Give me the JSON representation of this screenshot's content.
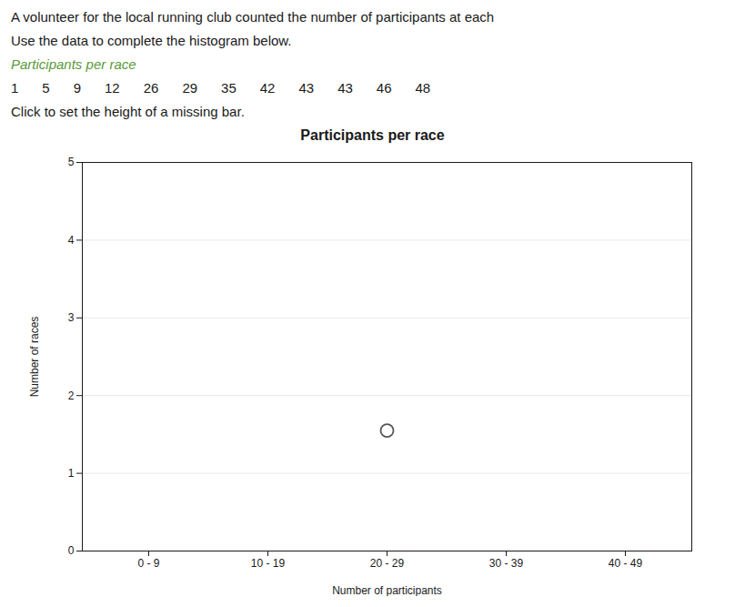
{
  "chart_data": {
    "type": "bar",
    "title": "Participants per race",
    "annotations": [
      {
        "text": "A volunteer for the local running club counted the number of participants at each"
      },
      {
        "text": "Use the data to complete the histogram below."
      },
      {
        "text": "Participants per race",
        "color": "#5a9a3a"
      },
      {
        "values": [
          1,
          5,
          9,
          12,
          26,
          29,
          35,
          42,
          43,
          43,
          46,
          48
        ]
      },
      {
        "text": "Click to set the height of a missing bar."
      }
    ],
    "xlabel": "Number of participants",
    "ylabel": "Number of races",
    "categories": [
      "0 - 9",
      "10 - 19",
      "20 - 29",
      "30 - 39",
      "40 - 49"
    ],
    "series": [
      {
        "type": "bar",
        "values": [
          null,
          null,
          null,
          null,
          null
        ]
      },
      {
        "type": "scatter",
        "marker": "circle",
        "color": "#555555",
        "values": [
          null,
          null,
          1.55,
          null,
          null
        ]
      }
    ],
    "ylim": [
      0,
      5
    ],
    "yticks": [
      0,
      1,
      2,
      3,
      4,
      5
    ],
    "grid": true
  }
}
